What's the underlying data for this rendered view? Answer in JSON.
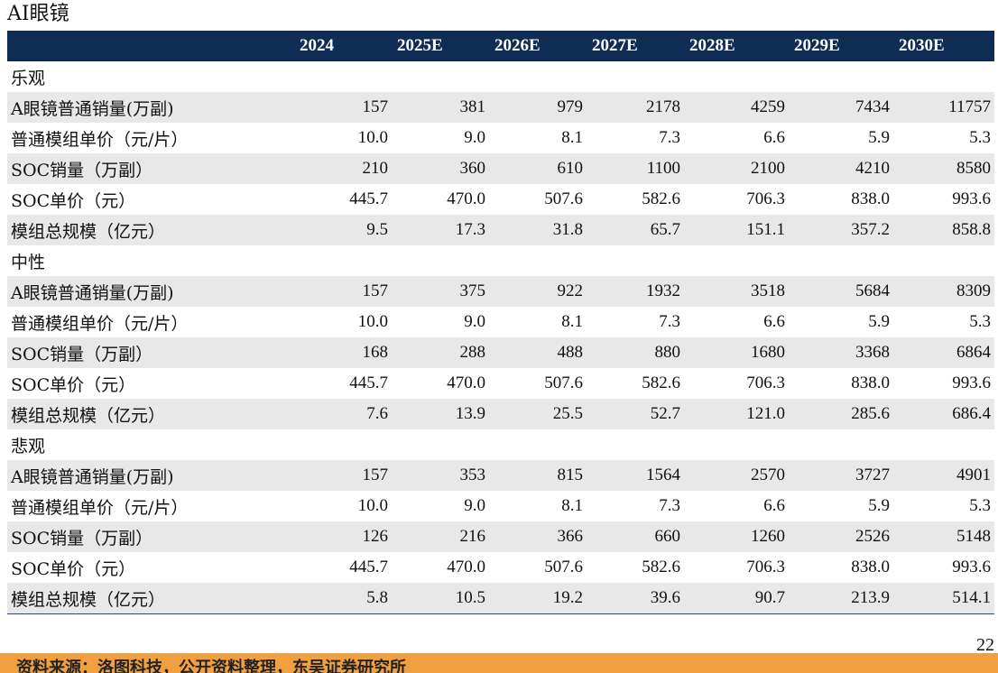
{
  "title": "AI眼镜",
  "columns": [
    "",
    "2024",
    "2025E",
    "2026E",
    "2027E",
    "2028E",
    "2029E",
    "2030E"
  ],
  "sections": [
    {
      "name": "乐观",
      "rows": [
        {
          "label": "A眼镜普通销量(万副)",
          "values": [
            "157",
            "381",
            "979",
            "2178",
            "4259",
            "7434",
            "11757"
          ]
        },
        {
          "label": "普通模组单价（元/片）",
          "values": [
            "10.0",
            "9.0",
            "8.1",
            "7.3",
            "6.6",
            "5.9",
            "5.3"
          ]
        },
        {
          "label": "SOC销量（万副）",
          "values": [
            "210",
            "360",
            "610",
            "1100",
            "2100",
            "4210",
            "8580"
          ]
        },
        {
          "label": "SOC单价（元）",
          "values": [
            "445.7",
            "470.0",
            "507.6",
            "582.6",
            "706.3",
            "838.0",
            "993.6"
          ]
        },
        {
          "label": "模组总规模（亿元）",
          "values": [
            "9.5",
            "17.3",
            "31.8",
            "65.7",
            "151.1",
            "357.2",
            "858.8"
          ]
        }
      ]
    },
    {
      "name": "中性",
      "rows": [
        {
          "label": "A眼镜普通销量(万副)",
          "values": [
            "157",
            "375",
            "922",
            "1932",
            "3518",
            "5684",
            "8309"
          ]
        },
        {
          "label": "普通模组单价（元/片）",
          "values": [
            "10.0",
            "9.0",
            "8.1",
            "7.3",
            "6.6",
            "5.9",
            "5.3"
          ]
        },
        {
          "label": "SOC销量（万副）",
          "values": [
            "168",
            "288",
            "488",
            "880",
            "1680",
            "3368",
            "6864"
          ]
        },
        {
          "label": "SOC单价（元）",
          "values": [
            "445.7",
            "470.0",
            "507.6",
            "582.6",
            "706.3",
            "838.0",
            "993.6"
          ]
        },
        {
          "label": "模组总规模（亿元）",
          "values": [
            "7.6",
            "13.9",
            "25.5",
            "52.7",
            "121.0",
            "285.6",
            "686.4"
          ]
        }
      ]
    },
    {
      "name": "悲观",
      "rows": [
        {
          "label": "A眼镜普通销量(万副)",
          "values": [
            "157",
            "353",
            "815",
            "1564",
            "2570",
            "3727",
            "4901"
          ]
        },
        {
          "label": "普通模组单价（元/片）",
          "values": [
            "10.0",
            "9.0",
            "8.1",
            "7.3",
            "6.6",
            "5.9",
            "5.3"
          ]
        },
        {
          "label": "SOC销量（万副）",
          "values": [
            "126",
            "216",
            "366",
            "660",
            "1260",
            "2526",
            "5148"
          ]
        },
        {
          "label": "SOC单价（元）",
          "values": [
            "445.7",
            "470.0",
            "507.6",
            "582.6",
            "706.3",
            "838.0",
            "993.6"
          ]
        },
        {
          "label": "模组总规模（亿元）",
          "values": [
            "5.8",
            "10.5",
            "19.2",
            "39.6",
            "90.7",
            "213.9",
            "514.1"
          ]
        }
      ]
    }
  ],
  "page_number": "22",
  "source": "资料来源：洛图科技，公开资料整理，东吴证券研究所",
  "colors": {
    "header_bg": "#0f2c55",
    "row_shade": "#e8e8e8",
    "source_bar": "#f0a040"
  }
}
